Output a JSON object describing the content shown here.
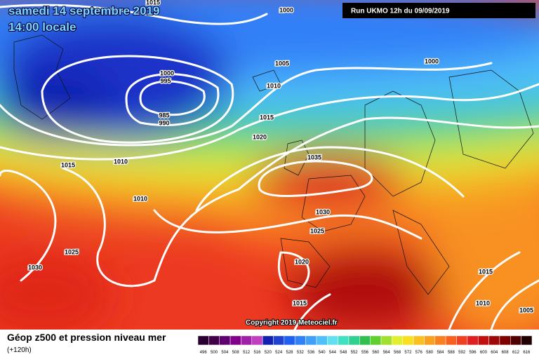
{
  "header": {
    "date": "samedi 14 septembre 2019",
    "time": "14:00 locale",
    "run": "Run UKMO 12h du 09/09/2019"
  },
  "isobar_labels": [
    "1015",
    "1000",
    "1005",
    "1000",
    "1000",
    "995",
    "1010",
    "985",
    "990",
    "1015",
    "1020",
    "1035",
    "1015",
    "1010",
    "1010",
    "1030",
    "1025",
    "1025",
    "1030",
    "1020",
    "1015",
    "1010",
    "1005",
    "1015"
  ],
  "copyright": "Copyright 2019 Meteociel.fr",
  "footer": {
    "title": "Géop z500 et pression niveau mer",
    "subtitle": "(+120h)"
  },
  "legend": {
    "labels": [
      496,
      500,
      504,
      508,
      512,
      516,
      520,
      524,
      528,
      532,
      536,
      540,
      544,
      548,
      552,
      556,
      560,
      564,
      568,
      572,
      576,
      580,
      584,
      588,
      592,
      596,
      600,
      604,
      608,
      612,
      616
    ],
    "colors": [
      "#2a0030",
      "#400048",
      "#600070",
      "#80008c",
      "#a020a8",
      "#c040c0",
      "#1020b0",
      "#2040d0",
      "#2060f0",
      "#3080f8",
      "#40a0f8",
      "#50c0f8",
      "#60e0f0",
      "#40e0c0",
      "#30d090",
      "#30c050",
      "#60d030",
      "#a0e030",
      "#e0f030",
      "#f8e020",
      "#f8c020",
      "#f8a020",
      "#f88020",
      "#f86020",
      "#f04020",
      "#e02020",
      "#c01010",
      "#a00808",
      "#800000",
      "#500000",
      "#200000"
    ]
  }
}
